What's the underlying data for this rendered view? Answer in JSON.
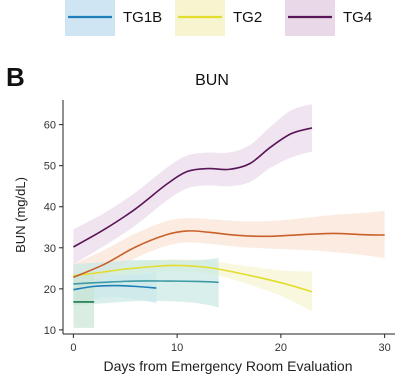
{
  "panel_letter": "B",
  "chart_data": {
    "type": "line",
    "title": "BUN",
    "xlabel": "Days from Emergency Room Evaluation",
    "ylabel": "BUN (mg/dL)",
    "xlim": [
      -1,
      31
    ],
    "ylim": [
      9,
      66
    ],
    "x_ticks": [
      0,
      10,
      20,
      30
    ],
    "y_ticks": [
      10,
      20,
      30,
      40,
      50,
      60
    ],
    "grid": false,
    "legend": {
      "placement": "top"
    },
    "series": [
      {
        "name": "TG1B",
        "color": "#1f7fb8",
        "band_color": "#cfe5f3",
        "in_legend": true,
        "x": [
          0,
          2,
          4,
          6,
          8
        ],
        "y": [
          19.8,
          20.6,
          20.8,
          20.6,
          20.2
        ],
        "lower": [
          16,
          17.5,
          18,
          17.5,
          16.5
        ],
        "upper": [
          24,
          24,
          23.5,
          23.5,
          24
        ]
      },
      {
        "name": "TG2",
        "color": "#e3dd2e",
        "band_color": "#f6f5d0",
        "in_legend": true,
        "x": [
          0,
          2,
          5,
          8,
          10,
          13,
          16,
          20,
          23
        ],
        "y": [
          23.2,
          23.8,
          24.8,
          25.5,
          25.7,
          25.2,
          23.8,
          21.5,
          19.3
        ],
        "lower": [
          21.5,
          22.5,
          23.5,
          24.2,
          24.3,
          23.7,
          21.8,
          18.3,
          14.5
        ],
        "upper": [
          25,
          25.2,
          26.2,
          27,
          27.2,
          26.8,
          25.8,
          24.5,
          24.2
        ]
      },
      {
        "name": "TG4",
        "color": "#5a1458",
        "band_color": "#e8d8e8",
        "in_legend": true,
        "x": [
          0,
          3,
          6,
          9,
          11,
          13,
          15,
          17,
          19,
          21,
          23
        ],
        "y": [
          30.2,
          34.5,
          39.5,
          45.5,
          48.6,
          49.3,
          49.1,
          50.5,
          54.5,
          57.8,
          59.2
        ],
        "lower": [
          26,
          30.5,
          35.5,
          41.5,
          44.5,
          45.2,
          45.0,
          46,
          49.5,
          52,
          53.5
        ],
        "upper": [
          34.5,
          38.5,
          43.5,
          49.5,
          52.5,
          53.2,
          53.2,
          55,
          59.5,
          63.5,
          65
        ]
      },
      {
        "name": "",
        "color": "#c9602a",
        "band_color": "#fbe3d4",
        "in_legend": false,
        "x": [
          0,
          3,
          6,
          9,
          11,
          13,
          16,
          19,
          22,
          25,
          28,
          30
        ],
        "y": [
          22.8,
          26,
          30.2,
          33.2,
          34.1,
          33.8,
          33,
          32.8,
          33.2,
          33.5,
          33.2,
          33.1
        ],
        "lower": [
          19.5,
          23,
          27.5,
          30.5,
          31.3,
          31.0,
          30.2,
          29.8,
          29.5,
          29.0,
          28.2,
          27.5
        ],
        "upper": [
          26,
          29.5,
          33.5,
          36.5,
          37.2,
          37.0,
          36.5,
          36.5,
          37.2,
          38.0,
          38.5,
          39.0
        ]
      },
      {
        "name": "",
        "color": "#3d9aa6",
        "band_color": "#c7e8e4",
        "in_legend": false,
        "x": [
          0,
          3,
          6,
          9,
          12,
          14
        ],
        "y": [
          21.2,
          21.6,
          21.9,
          21.9,
          21.8,
          21.6
        ],
        "lower": [
          16,
          16.5,
          17,
          17,
          16.5,
          15.5
        ],
        "upper": [
          26,
          26.5,
          27,
          27,
          27,
          27.5
        ]
      },
      {
        "name": "",
        "color": "#1a7a4a",
        "band_color": "#cbe6d6",
        "in_legend": false,
        "x": [
          0,
          1,
          2
        ],
        "y": [
          16.8,
          16.8,
          16.8
        ],
        "lower": [
          10.5,
          10.5,
          10.5
        ],
        "upper": [
          23.5,
          23.5,
          23.5
        ]
      }
    ]
  }
}
